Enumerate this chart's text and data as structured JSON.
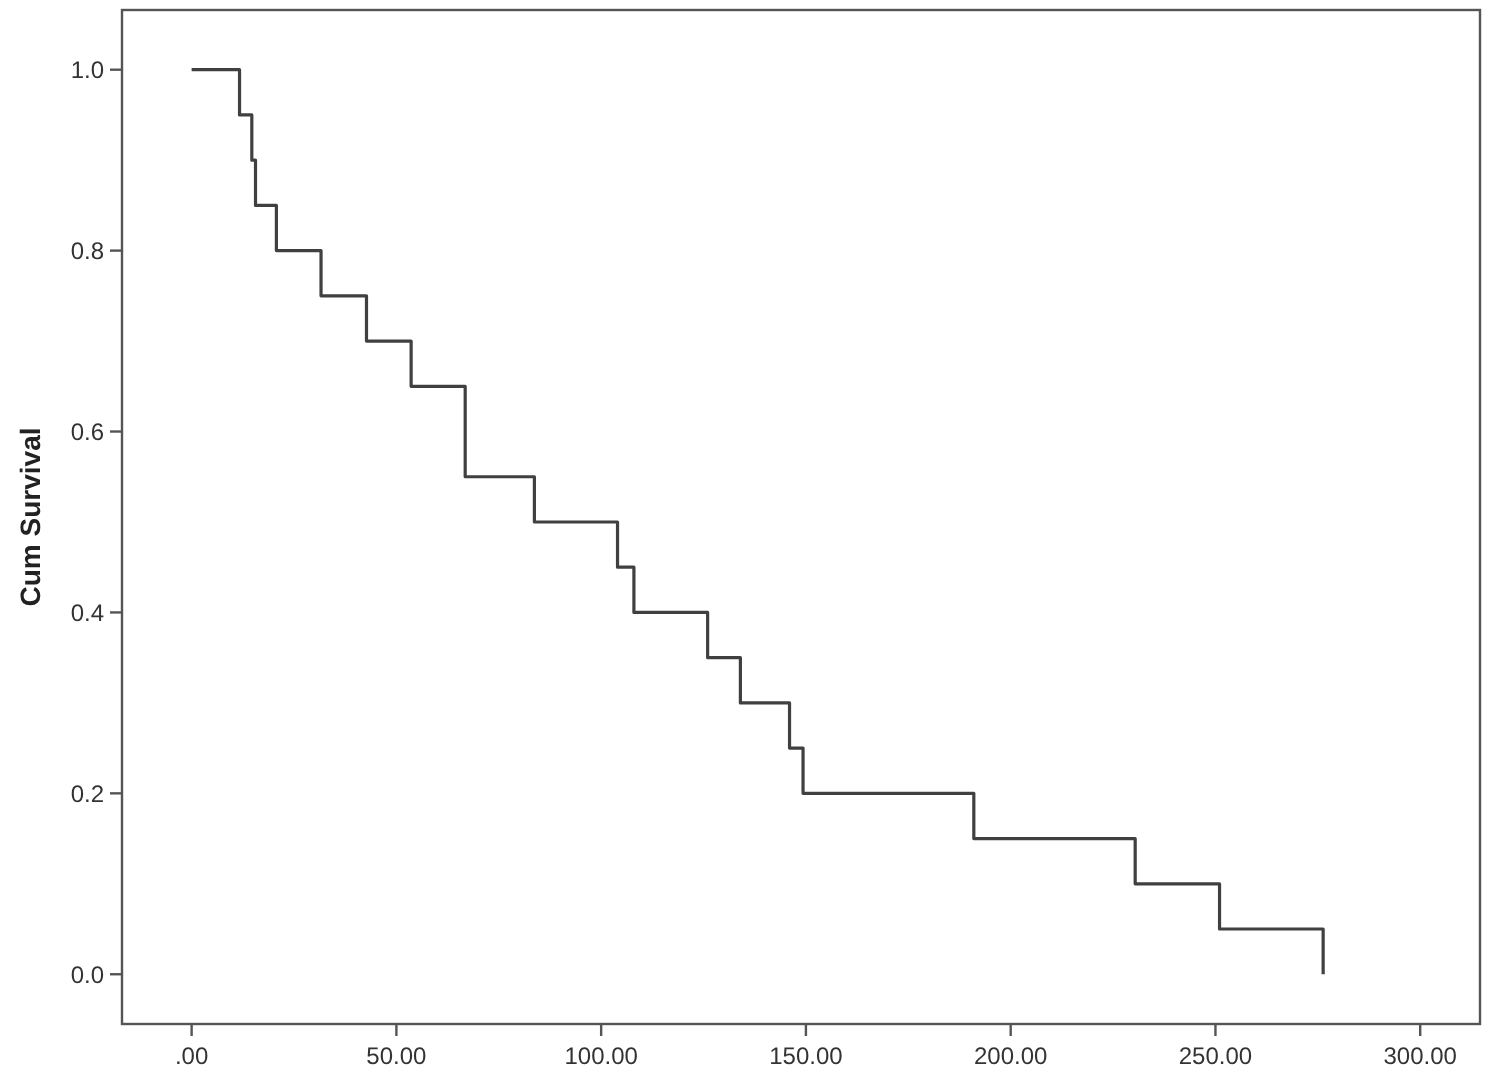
{
  "chart_data": {
    "type": "step",
    "ylabel": "Cum Survival",
    "x": [
      0,
      11.7,
      14.7,
      15.6,
      20.7,
      31.6,
      42.7,
      53.6,
      66.8,
      83.7,
      104,
      108,
      126,
      134,
      146,
      149.3,
      191,
      230.4,
      251,
      276.3
    ],
    "series": [
      {
        "color": "#404040",
        "values": [
          1,
          0.95,
          0.9,
          0.85,
          0.8,
          0.75,
          0.7,
          0.65,
          0.55,
          0.5,
          0.45,
          0.4,
          0.35,
          0.3,
          0.25,
          0.2,
          0.15,
          0.1,
          0.05,
          0
        ]
      }
    ],
    "xlim": [
      -17,
      314.6
    ],
    "ylim": [
      -0.055,
      1.066
    ],
    "xticks": [
      {
        "value": 0,
        "label": ".00"
      },
      {
        "value": 50,
        "label": "50.00"
      },
      {
        "value": 100,
        "label": "100.00"
      },
      {
        "value": 150,
        "label": "150.00"
      },
      {
        "value": 200,
        "label": "200.00"
      },
      {
        "value": 250,
        "label": "250.00"
      },
      {
        "value": 300,
        "label": "300.00"
      }
    ],
    "yticks": [
      {
        "value": 0,
        "label": "0.0"
      },
      {
        "value": 0.2,
        "label": "0.2"
      },
      {
        "value": 0.4,
        "label": "0.4"
      },
      {
        "value": 0.6,
        "label": "0.6"
      },
      {
        "value": 0.8,
        "label": "0.8"
      },
      {
        "value": 1,
        "label": "1.0"
      }
    ],
    "marker": "none",
    "line_style": "solid"
  }
}
